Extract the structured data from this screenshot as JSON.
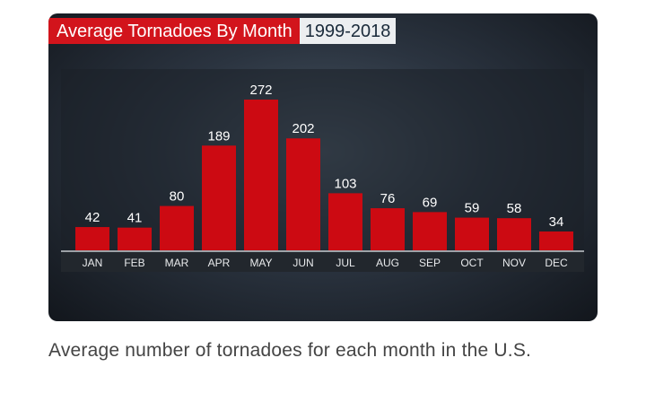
{
  "header": {
    "title": "Average Tornadoes By Month",
    "years": "1999-2018"
  },
  "caption": "Average number of tornadoes for each month in the U.S.",
  "colors": {
    "bar": "#cc0a12",
    "title_bg": "#d2141c",
    "axis_band": "#22272d"
  },
  "chart_data": {
    "type": "bar",
    "title": "Average Tornadoes By Month",
    "subtitle": "1999-2018",
    "categories": [
      "JAN",
      "FEB",
      "MAR",
      "APR",
      "MAY",
      "JUN",
      "JUL",
      "AUG",
      "SEP",
      "OCT",
      "NOV",
      "DEC"
    ],
    "values": [
      42,
      41,
      80,
      189,
      272,
      202,
      103,
      76,
      69,
      59,
      58,
      34
    ],
    "ylim": [
      0,
      272
    ],
    "data_labels": true,
    "grid": false,
    "legend": "none",
    "xlabel": "",
    "ylabel": ""
  }
}
